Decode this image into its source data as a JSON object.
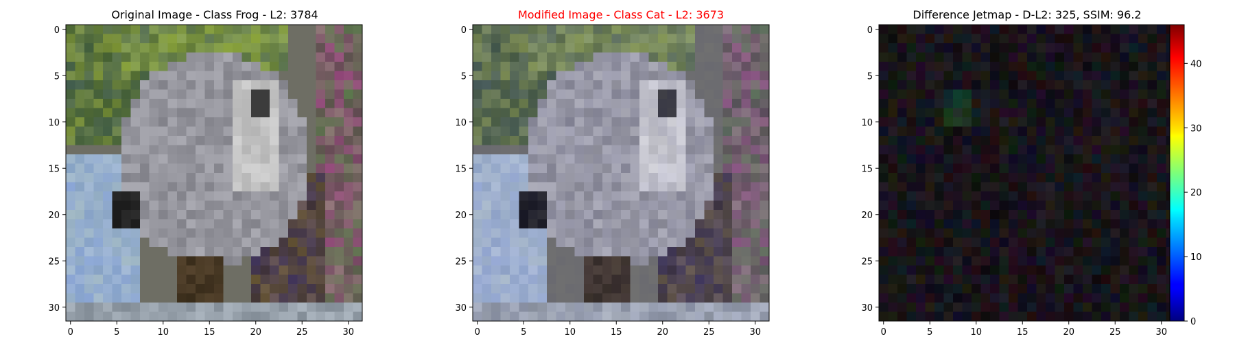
{
  "colorbar": {
    "ticks": [
      0,
      10,
      20,
      30,
      40
    ],
    "range": [
      0,
      46
    ],
    "colormap": "jet"
  },
  "chart_data": [
    {
      "type": "heatmap",
      "title": "Original Image - Class Frog - L2: 3784",
      "title_color": "#000000",
      "image_size": [
        32,
        32
      ],
      "xticks": [
        0,
        5,
        10,
        15,
        20,
        25,
        30
      ],
      "yticks": [
        0,
        5,
        10,
        15,
        20,
        25,
        30
      ],
      "variant": "original"
    },
    {
      "type": "heatmap",
      "title": "Modified Image - Class Cat - L2: 3673",
      "title_color": "#ff0000",
      "image_size": [
        32,
        32
      ],
      "xticks": [
        0,
        5,
        10,
        15,
        20,
        25,
        30
      ],
      "yticks": [
        0,
        5,
        10,
        15,
        20,
        25,
        30
      ],
      "variant": "modified"
    },
    {
      "type": "heatmap",
      "title": "Difference Jetmap - D-L2: 325, SSIM: 96.2",
      "title_color": "#000000",
      "image_size": [
        32,
        32
      ],
      "xticks": [
        0,
        5,
        10,
        15,
        20,
        25,
        30
      ],
      "yticks": [
        0,
        5,
        10,
        15,
        20,
        25,
        30
      ],
      "variant": "difference"
    }
  ]
}
